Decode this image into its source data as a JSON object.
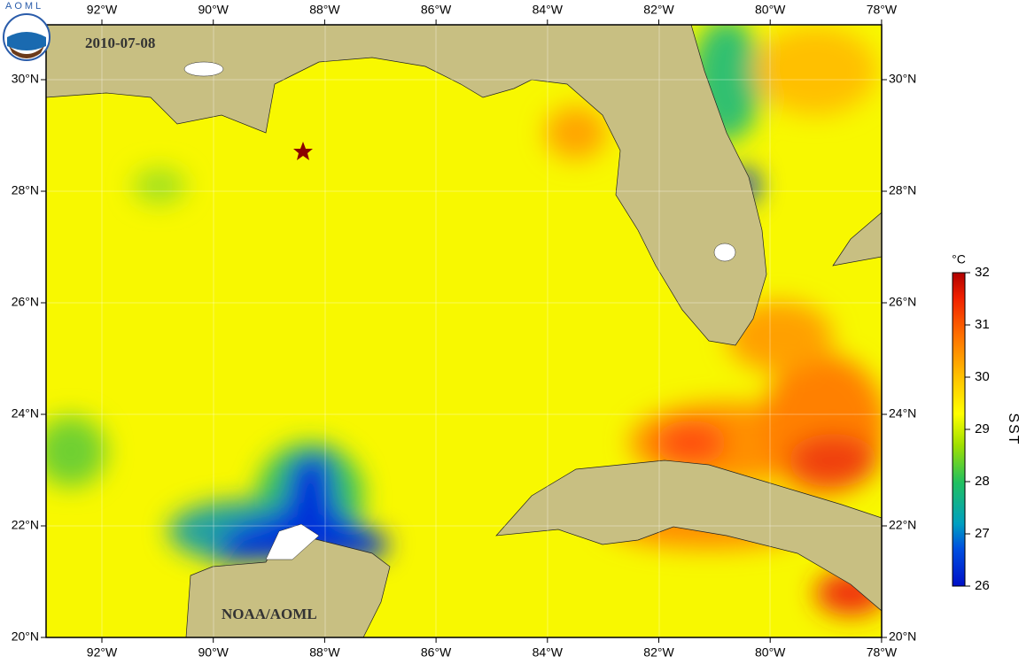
{
  "map": {
    "logo_text": "AOML",
    "date": "2010-07-08",
    "credit": "NOAA/AOML",
    "x_ticks": [
      "92°W",
      "90°W",
      "88°W",
      "86°W",
      "84°W",
      "82°W",
      "80°W",
      "78°W"
    ],
    "y_ticks": [
      "30°N",
      "28°N",
      "26°N",
      "24°N",
      "22°N",
      "20°N"
    ],
    "colorbar": {
      "unit": "°C",
      "label": "SST",
      "range": [
        26,
        32
      ],
      "ticks": [
        26,
        27,
        28,
        29,
        30,
        31,
        32
      ]
    }
  }
}
